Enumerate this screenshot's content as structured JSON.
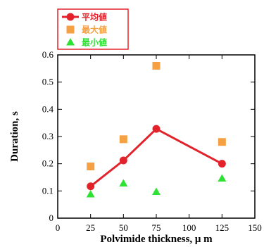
{
  "chart_data": {
    "type": "line",
    "xlabel": "Polvimide thickness, μ m",
    "ylabel": "Duration, s",
    "xlim": [
      0,
      150
    ],
    "ylim": [
      0,
      0.6
    ],
    "xticks": [
      0,
      25,
      50,
      75,
      100,
      125,
      150
    ],
    "yticks": [
      0,
      0.1,
      0.2,
      0.3,
      0.4,
      0.5,
      0.6
    ],
    "grid": false,
    "legend_position": "top-left, outside plot",
    "x": [
      25,
      50,
      75,
      125
    ],
    "series": [
      {
        "name": "平均値",
        "marker": "circle",
        "style": "line+marker",
        "color": "#e3232b",
        "values": [
          0.117,
          0.212,
          0.328,
          0.2
        ]
      },
      {
        "name": "最大値",
        "marker": "square",
        "style": "marker",
        "color": "#f5a042",
        "values": [
          0.19,
          0.29,
          0.56,
          0.28
        ]
      },
      {
        "name": "最小値",
        "marker": "triangle",
        "style": "marker",
        "color": "#2ee233",
        "values": [
          0.088,
          0.128,
          0.097,
          0.146
        ]
      }
    ]
  }
}
